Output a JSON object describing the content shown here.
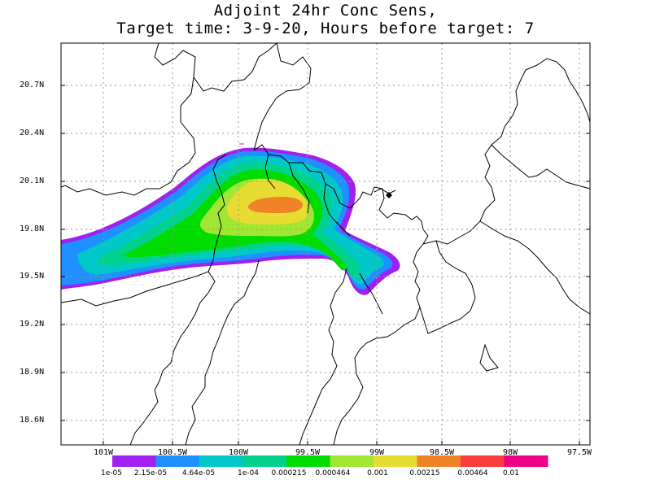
{
  "title": {
    "line1": "Adjoint 24hr Conc Sens,",
    "line2": "Target time: 3-9-20, Hours before target: 7"
  },
  "axes": {
    "y_labels": [
      "20.7N",
      "20.4N",
      "20.1N",
      "19.8N",
      "19.5N",
      "19.2N",
      "18.9N",
      "18.6N"
    ],
    "x_labels": [
      "101W",
      "100.5W",
      "100W",
      "99.5W",
      "99W",
      "98.5W",
      "98W",
      "97.5W"
    ]
  },
  "colorbar": {
    "labels": [
      "1e-05",
      "2.15e-05",
      "4.64e-05",
      "1e-04",
      "0.000215",
      "0.000464",
      "0.001",
      "0.00215",
      "0.00464",
      "0.01"
    ],
    "colors": [
      "#a020f0",
      "#1e90ff",
      "#00c8c8",
      "#00d28c",
      "#00dc00",
      "#a0e632",
      "#e6dc32",
      "#f08228",
      "#fa3c3c",
      "#f00082"
    ]
  },
  "map_colors": {
    "level1": "#a020f0",
    "level2": "#1e90ff",
    "level3": "#00c8c8",
    "level4": "#00d28c",
    "level5": "#00dc00",
    "level6": "#a0e632",
    "level7": "#e6dc32",
    "level8": "#f08228"
  }
}
